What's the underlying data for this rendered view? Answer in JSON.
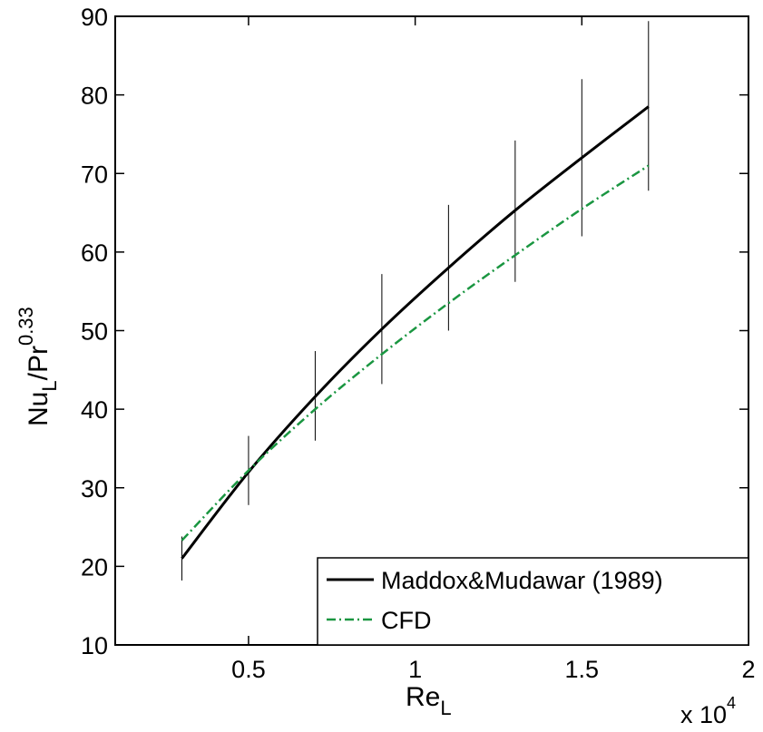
{
  "chart_data": {
    "type": "line",
    "title": "",
    "xlabel": {
      "main": "Re",
      "sub": "L"
    },
    "ylabel": {
      "main": "Nu",
      "sub": "L",
      "mid": "/Pr",
      "sup": "0.33"
    },
    "x_multiplier": {
      "prefix": "x 10",
      "exp": "4"
    },
    "xlim": [
      0.1,
      2.0
    ],
    "ylim": [
      10,
      90
    ],
    "xticks": [
      0.5,
      1,
      1.5,
      2
    ],
    "xtick_labels": [
      "0.5",
      "1",
      "1.5",
      "2"
    ],
    "yticks": [
      10,
      20,
      30,
      40,
      50,
      60,
      70,
      80,
      90
    ],
    "ytick_labels": [
      "10",
      "20",
      "30",
      "40",
      "50",
      "60",
      "70",
      "80",
      "90"
    ],
    "grid": false,
    "legend_position": "bottom-right",
    "series": [
      {
        "name": "Maddox&Mudawar (1989)",
        "style": "solid",
        "color": "#000000",
        "x": [
          0.3,
          0.5,
          0.7,
          0.9,
          1.1,
          1.3,
          1.5,
          1.7
        ],
        "y": [
          21,
          32,
          41.6,
          50.2,
          58,
          65.3,
          72,
          78.5
        ]
      },
      {
        "name": "CFD",
        "style": "dash-dot",
        "color": "#1a9641",
        "x": [
          0.3,
          0.5,
          0.7,
          0.9,
          1.1,
          1.3,
          1.5,
          1.7
        ],
        "y": [
          23.3,
          32.2,
          40,
          47,
          53.5,
          59.6,
          65.5,
          71
        ]
      }
    ],
    "error_bars": {
      "color": "#000000",
      "x": [
        0.3,
        0.5,
        0.7,
        0.9,
        1.1,
        1.3,
        1.5,
        1.7
      ],
      "low": [
        18.2,
        27.8,
        36,
        43.2,
        50,
        56.2,
        62,
        67.8
      ],
      "high": [
        23.8,
        36.6,
        47.4,
        57.2,
        66,
        74.2,
        82,
        89.4
      ]
    }
  }
}
